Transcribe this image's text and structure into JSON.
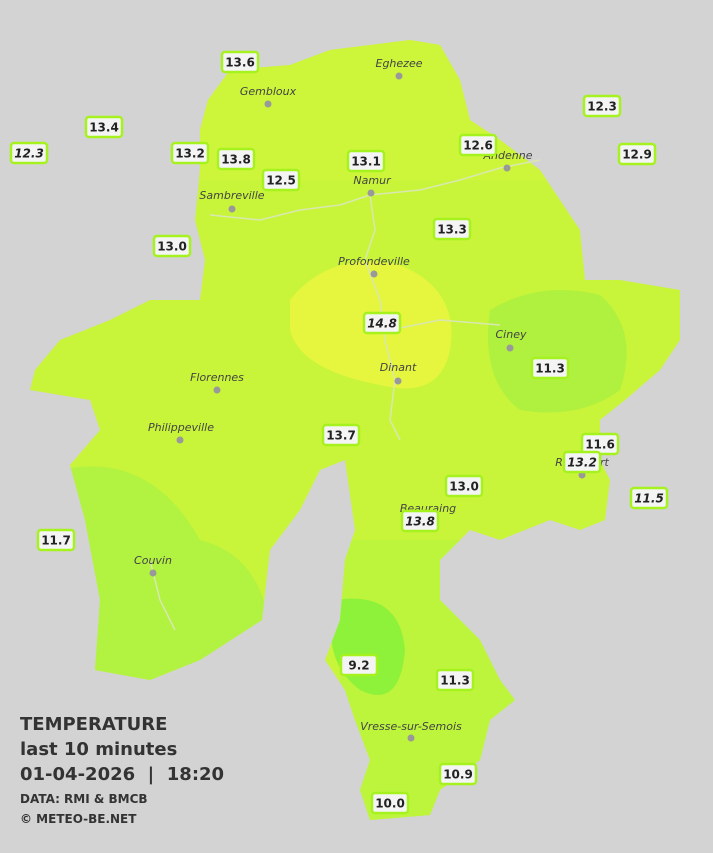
{
  "map": {
    "cities": [
      "Eghezee",
      "Gembloux",
      "Andenne",
      "Namur",
      "Sambreville",
      "Profondeville",
      "Ciney",
      "Dinant",
      "Florennes",
      "Philippeville",
      "Rochefort",
      "Beauraing",
      "Couvin",
      "Vresse-sur-Semois"
    ],
    "stations": [
      "13.6",
      "13.4",
      "12.3",
      "13.2",
      "13.8",
      "12.5",
      "13.1",
      "12.6",
      "12.3",
      "12.9",
      "13.0",
      "13.3",
      "14.8",
      "11.3",
      "13.7",
      "11.6",
      "13.2",
      "13.0",
      "11.5",
      "13.8",
      "11.7",
      "9.2",
      "11.3",
      "10.9",
      "10.0"
    ]
  },
  "caption": {
    "title": "TEMPERATURE",
    "subtitle": "last 10 minutes",
    "datetime": "01-04-2026  |  18:20",
    "source": "DATA: RMI & BMCB",
    "credit": "© METEO-BE.NET"
  }
}
